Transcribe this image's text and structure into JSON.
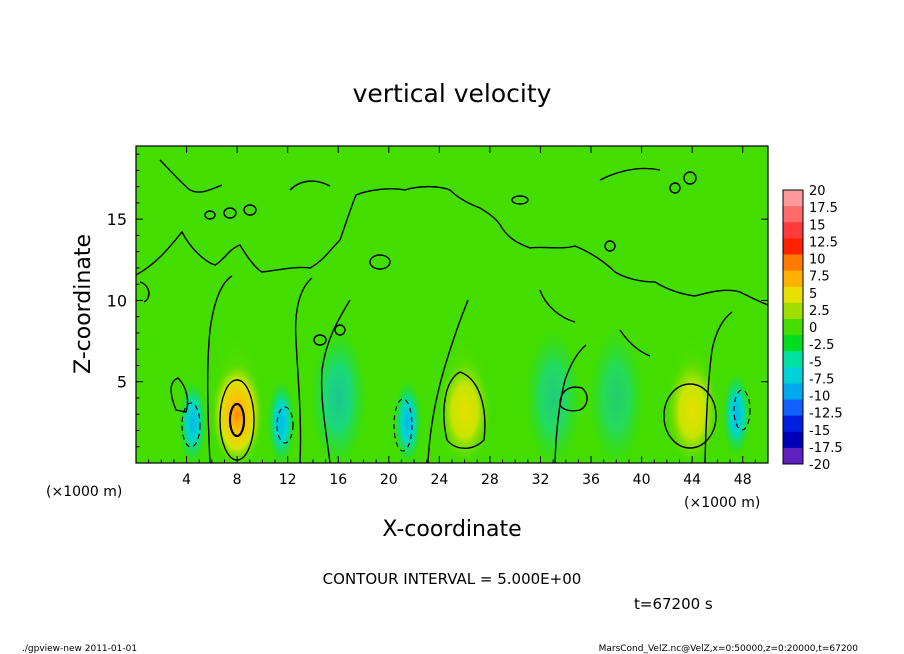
{
  "chart_data": {
    "type": "heatmap",
    "title": "vertical velocity",
    "xlabel": "X-coordinate",
    "ylabel": "Z-coordinate",
    "x_unit_left": "(×1000 m)",
    "x_unit_right": "(×1000 m)",
    "xlim": [
      0,
      50
    ],
    "ylim": [
      0,
      19.5
    ],
    "x_ticks": [
      4,
      8,
      12,
      16,
      20,
      24,
      28,
      32,
      36,
      40,
      44,
      48
    ],
    "x_tick_labels": [
      "4",
      "8",
      "12",
      "16",
      "20",
      "24",
      "28",
      "32",
      "36",
      "40",
      "44",
      "48"
    ],
    "y_ticks": [
      5,
      10,
      15
    ],
    "y_tick_labels": [
      "5",
      "10",
      "15"
    ],
    "contour_interval_text": "CONTOUR INTERVAL = 5.000E+00",
    "time_text": "t=67200 s",
    "colorbar": {
      "labels": [
        "20",
        "17.5",
        "15",
        "12.5",
        "10",
        "7.5",
        "5",
        "2.5",
        "0",
        "-2.5",
        "-5",
        "-7.5",
        "-10",
        "-12.5",
        "-15",
        "-17.5",
        "-20"
      ],
      "colors": [
        "#ff9a9a",
        "#ff6a6a",
        "#ff3a3a",
        "#ff2200",
        "#ff7a00",
        "#ffb000",
        "#e8e000",
        "#a0e000",
        "#44dd00",
        "#00dd20",
        "#00e0a0",
        "#00d0d8",
        "#00a8f0",
        "#1060ff",
        "#0020e0",
        "#0000b8",
        "#6020c0"
      ]
    },
    "features": [
      {
        "kind": "updraft",
        "x": 8,
        "z": 3,
        "peak": 11
      },
      {
        "kind": "updraft",
        "x": 26,
        "z": 3.2,
        "peak": 6
      },
      {
        "kind": "updraft",
        "x": 44,
        "z": 3.2,
        "peak": 7
      },
      {
        "kind": "downdraft",
        "x": 4.5,
        "z": 2.5,
        "peak": -7
      },
      {
        "kind": "downdraft",
        "x": 11.5,
        "z": 2.5,
        "peak": -6
      },
      {
        "kind": "downdraft",
        "x": 21.5,
        "z": 2.5,
        "peak": -9
      },
      {
        "kind": "downdraft",
        "x": 47.5,
        "z": 3,
        "peak": -6
      }
    ]
  },
  "footer": {
    "left": "./gpview-new 2011-01-01",
    "right": "MarsCond_VelZ.nc@VelZ,x=0:50000,z=0:20000,t=67200"
  }
}
